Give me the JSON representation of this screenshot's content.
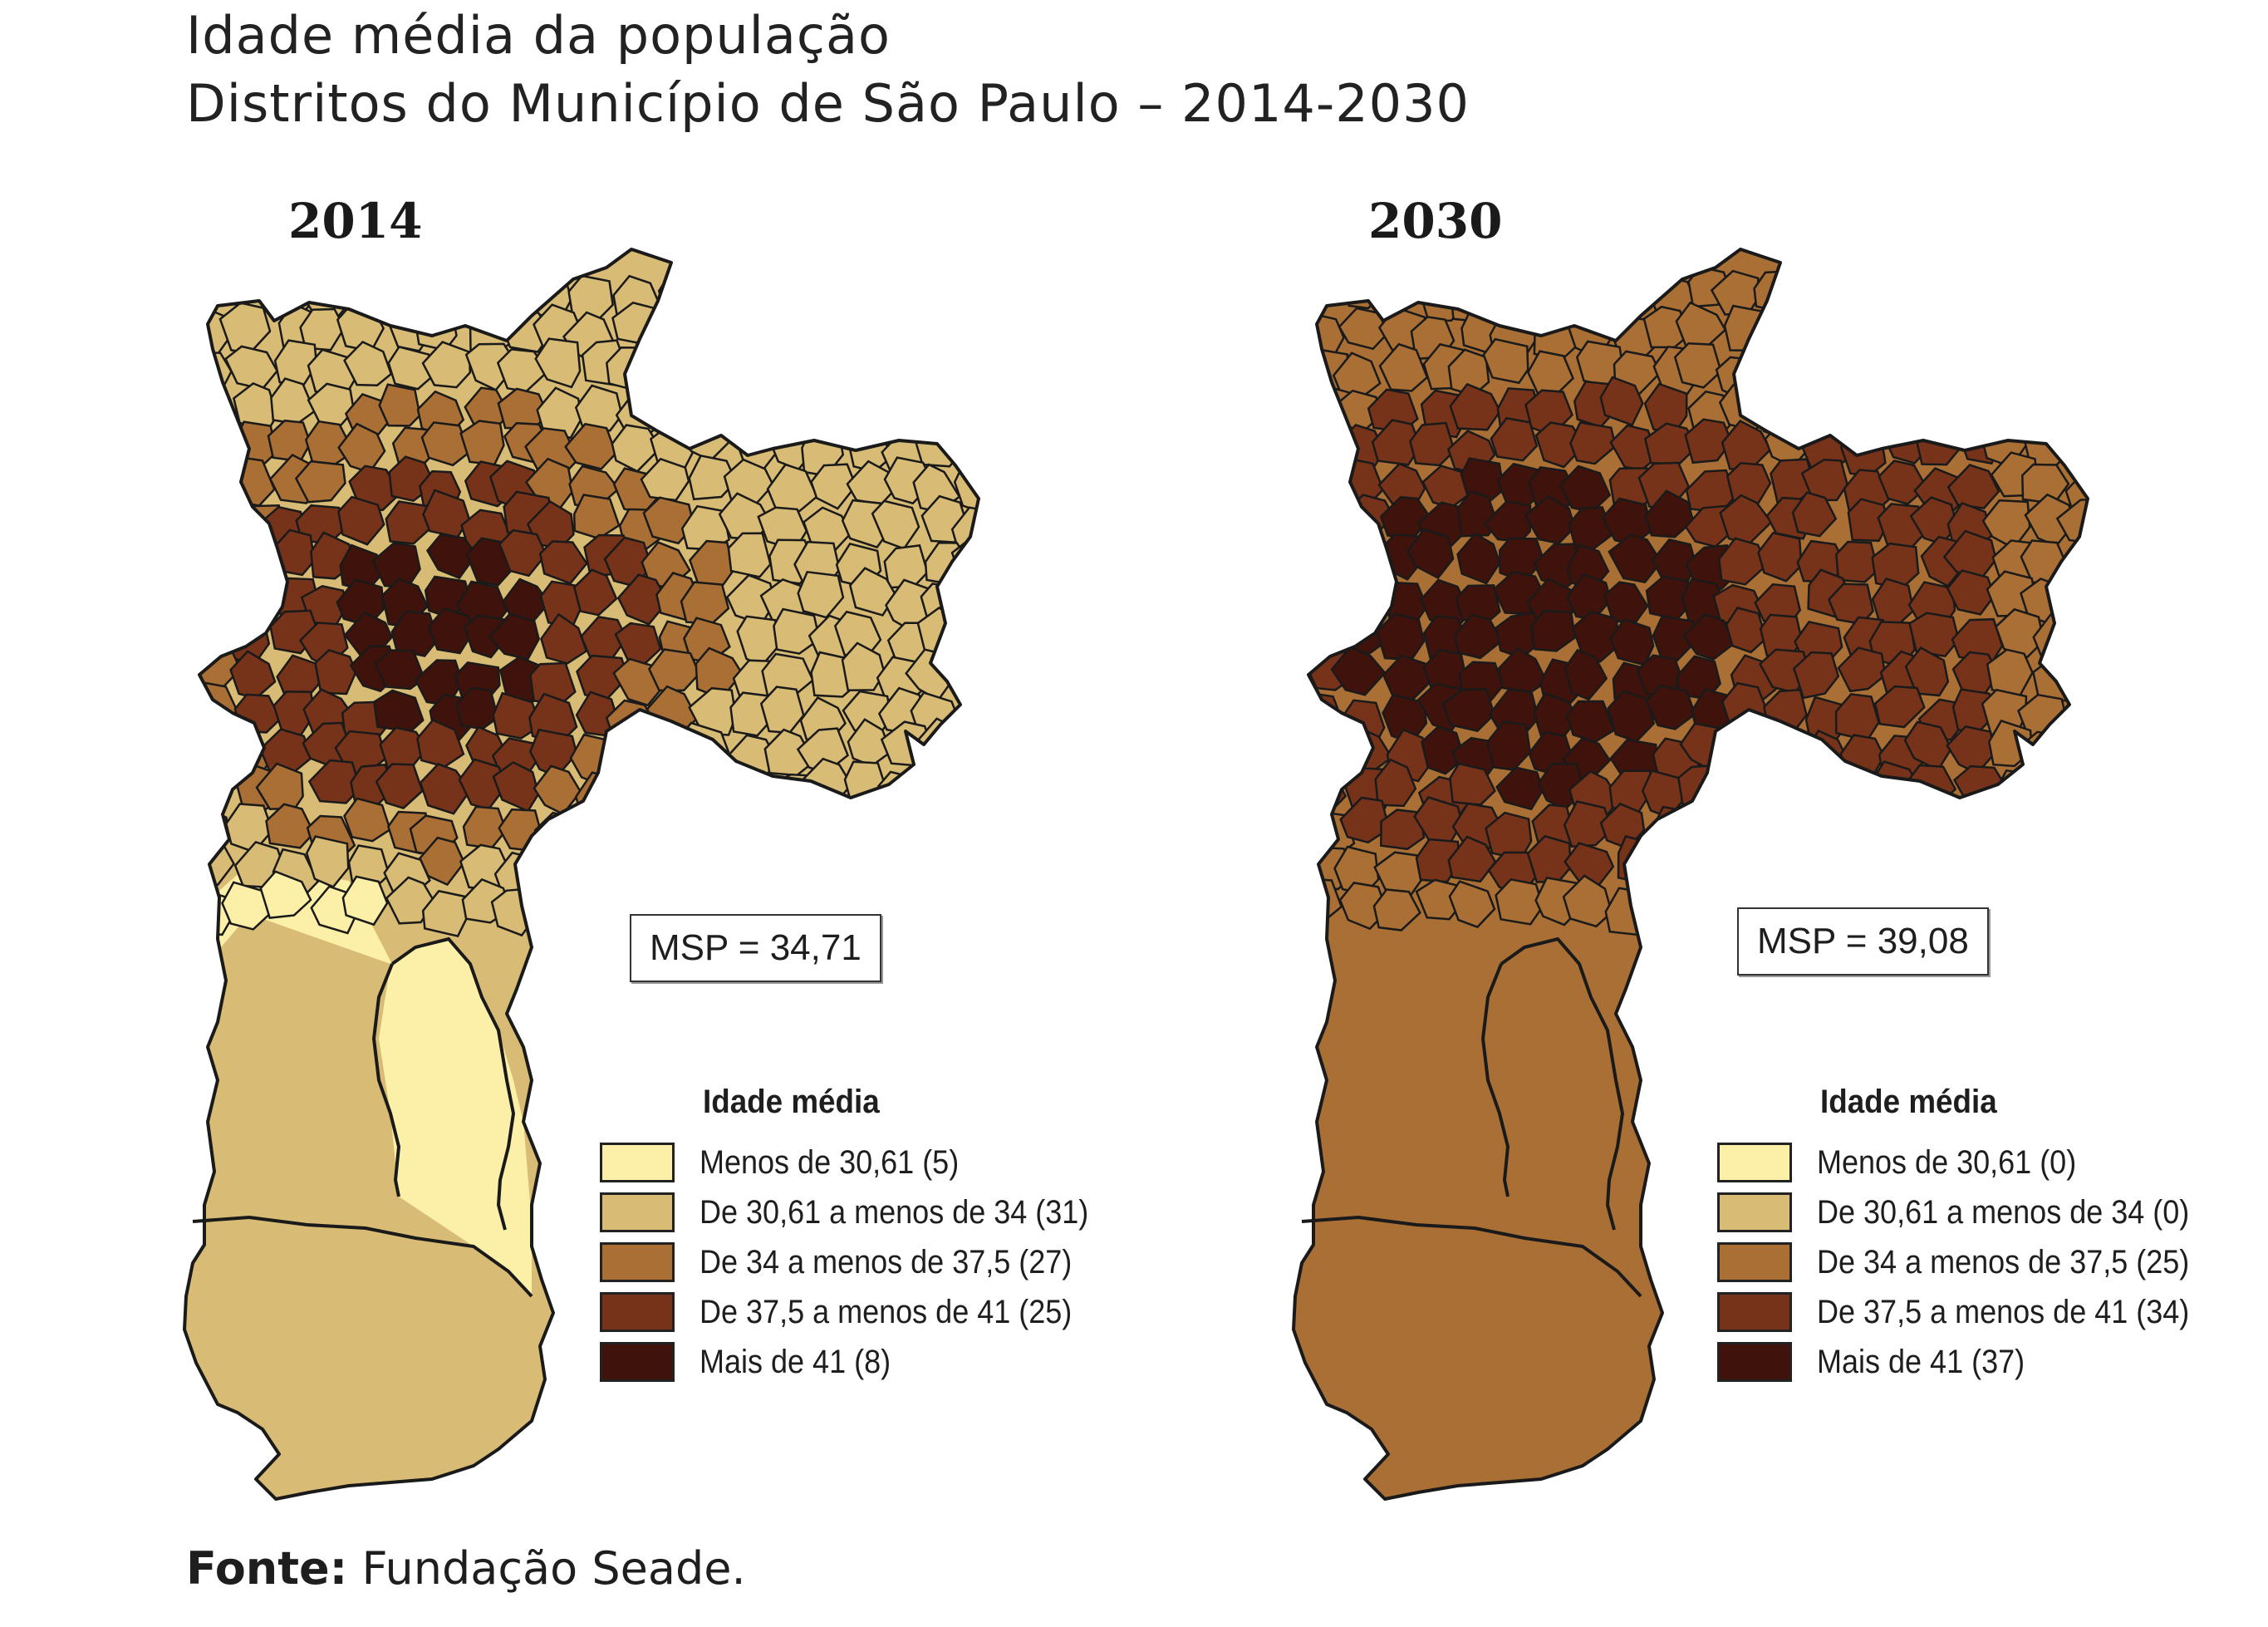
{
  "title": {
    "line1": "Idade média da população",
    "line2": "Distritos do Município de São Paulo – 2014-2030"
  },
  "legend_title": "Idade média",
  "classes": [
    {
      "label": "Menos de 30,61",
      "color": "#fcefa8"
    },
    {
      "label": "De 30,61 a menos de 34",
      "color": "#d8bb74"
    },
    {
      "label": "De 34 a menos de 37,5",
      "color": "#a96f35"
    },
    {
      "label": "De 37,5 a menos de 41",
      "color": "#76331a"
    },
    {
      "label": "Mais de 41",
      "color": "#3f130c"
    }
  ],
  "maps": [
    {
      "year": "2014",
      "msp": "MSP = 34,71",
      "legend": [
        "Menos de 30,61 (5)",
        "De 30,61 a menos de 34 (31)",
        "De 34 a menos de 37,5 (27)",
        "De 37,5 a menos de 41 (25)",
        "Mais de 41 (8)"
      ],
      "class_counts": [
        5,
        31,
        27,
        25,
        8
      ],
      "south_class": 1,
      "south_mid_class": 0
    },
    {
      "year": "2030",
      "msp": "MSP = 39,08",
      "legend": [
        "Menos de 30,61 (0)",
        "De 30,61 a menos de 34 (0)",
        "De 34 a menos de 37,5 (25)",
        "De 37,5 a menos de 41 (34)",
        "Mais de 41 (37)"
      ],
      "class_counts": [
        0,
        0,
        25,
        34,
        37
      ],
      "south_class": 2,
      "south_mid_class": 2
    }
  ],
  "source": {
    "label": "Fonte:",
    "text": " Fundação Seade."
  }
}
